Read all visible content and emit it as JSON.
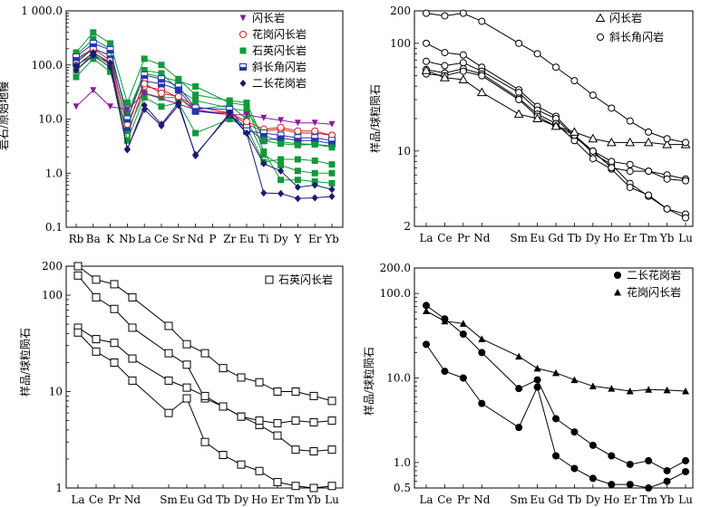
{
  "chart_data": [
    {
      "type": "line",
      "title": "",
      "xlabel": "",
      "ylabel": "岩石/原始地幔",
      "yscale": "log",
      "ylim": [
        0.1,
        1000
      ],
      "ytick_labels": [
        "0.1",
        "1.0",
        "10.0",
        "100.0",
        "1 000.0"
      ],
      "categories": [
        "Rb",
        "Ba",
        "K",
        "Nb",
        "La",
        "Ce",
        "Sr",
        "Nd",
        "P",
        "Zr",
        "Eu",
        "Ti",
        "Dy",
        "Y",
        "Er",
        "Yb"
      ],
      "legend_position": "top-right",
      "series": [
        {
          "name": "闪长岩",
          "color": "#8b1a9c",
          "marker": "triangle-down",
          "values": [
            17,
            34,
            17,
            15,
            30,
            null,
            null,
            15,
            null,
            12,
            12,
            10.5,
            9.5,
            8.5,
            8.5,
            8
          ]
        },
        {
          "name": "花岗闪长岩",
          "color": "#d22020",
          "marker": "circle-open",
          "values": [
            130,
            200,
            120,
            8,
            45,
            30,
            26,
            17,
            null,
            13,
            9,
            6.5,
            7,
            6,
            6,
            5
          ]
        },
        {
          "name": "石英闪长岩",
          "color": "#0e9a3a",
          "marker": "square",
          "values": [
            170,
            400,
            250,
            20,
            130,
            100,
            55,
            28,
            null,
            22,
            20,
            4,
            3.5,
            3.3,
            3.4,
            3
          ]
        },
        {
          "name": "斜长角闪岩",
          "color": "#2238a8",
          "marker": "square-half",
          "values": [
            140,
            250,
            190,
            10,
            65,
            55,
            40,
            16,
            null,
            15,
            6,
            5.5,
            5,
            4.5,
            4.5,
            4
          ]
        },
        {
          "name": "二长花岗岩",
          "color": "#1a1a70",
          "marker": "diamond",
          "values": [
            95,
            170,
            110,
            2.7,
            18,
            8,
            20,
            2.1,
            null,
            13,
            5.5,
            0.43,
            0.42,
            0.34,
            0.35,
            0.37
          ]
        }
      ],
      "extra_lines": [
        {
          "color": "#d22020",
          "marker": "circle-open",
          "values": [
            100,
            150,
            110,
            5,
            40,
            35,
            25,
            14,
            null,
            13,
            8,
            6,
            6.5,
            5.5,
            5.5,
            5
          ]
        },
        {
          "color": "#0e9a3a",
          "marker": "square",
          "values": [
            60,
            130,
            75,
            6,
            30,
            25,
            25,
            15,
            null,
            18,
            10,
            2.2,
            1.4,
            1.1,
            1.0,
            1.0
          ]
        },
        {
          "color": "#0e9a3a",
          "marker": "square",
          "values": [
            80,
            160,
            100,
            4,
            25,
            17,
            20,
            5.5,
            null,
            10,
            7,
            1.6,
            1.8,
            1.8,
            1.7,
            1.45
          ]
        },
        {
          "color": "#0e9a3a",
          "marker": "square",
          "values": [
            120,
            200,
            150,
            13,
            70,
            60,
            50,
            40,
            null,
            20,
            18,
            2.5,
            0.75,
            0.75,
            0.7,
            0.65
          ]
        },
        {
          "color": "#0e9a3a",
          "marker": "square",
          "values": [
            150,
            300,
            200,
            10,
            80,
            70,
            35,
            22,
            null,
            16,
            14,
            5,
            3.8,
            3.5,
            3.4,
            3.2
          ]
        },
        {
          "color": "#2238a8",
          "marker": "square-half",
          "values": [
            110,
            200,
            150,
            7,
            50,
            45,
            35,
            14,
            null,
            12,
            7,
            4,
            4.5,
            4,
            4,
            3.5
          ]
        },
        {
          "color": "#1a1a70",
          "marker": "diamond",
          "values": [
            80,
            150,
            90,
            2.8,
            15,
            7.5,
            18,
            2.2,
            null,
            12,
            5.5,
            1.5,
            1.1,
            0.55,
            0.6,
            0.5
          ]
        }
      ]
    },
    {
      "type": "line",
      "title": "",
      "ylabel": "样品/球粒陨石",
      "yscale": "log",
      "ylim": [
        2,
        200
      ],
      "ytick_labels": [
        "2",
        "10",
        "100",
        "200"
      ],
      "categories": [
        "La",
        "Ce",
        "Pr",
        "Nd",
        "",
        "Sm",
        "Eu",
        "Gd",
        "Tb",
        "Dy",
        "Ho",
        "Er",
        "Tm",
        "Yb",
        "Lu"
      ],
      "legend_position": "top-right",
      "series": [
        {
          "name": "闪长岩",
          "color": "#000",
          "marker": "triangle-open",
          "values": [
            56,
            48,
            46,
            35,
            null,
            22,
            20,
            17,
            15,
            13,
            12,
            12,
            12,
            11.5,
            11.5
          ]
        },
        {
          "name": "斜长角闪岩",
          "color": "#000",
          "marker": "circle-open",
          "values": [
            190,
            180,
            190,
            160,
            null,
            100,
            80,
            60,
            45,
            33,
            25,
            19,
            15,
            13,
            12
          ]
        }
      ],
      "extra_lines": [
        {
          "values": [
            100,
            82,
            78,
            60,
            null,
            37,
            26,
            21,
            14,
            9.5,
            7.5,
            5,
            3.8,
            2.9,
            2.6
          ]
        },
        {
          "values": [
            68,
            62,
            66,
            55,
            null,
            35,
            24,
            20,
            13.5,
            10,
            8,
            7.5,
            6.5,
            6,
            5.5
          ]
        },
        {
          "values": [
            57,
            53,
            58,
            52,
            null,
            31,
            22,
            18,
            12.5,
            8.5,
            6.8,
            4.6,
            3.9,
            2.9,
            2.4
          ]
        },
        {
          "values": [
            52,
            50,
            55,
            50,
            null,
            30,
            21,
            17,
            14,
            10,
            7,
            6.5,
            6.5,
            5.5,
            5.3
          ]
        }
      ]
    },
    {
      "type": "line",
      "title": "",
      "ylabel": "样品/球粒陨石",
      "yscale": "log",
      "ylim": [
        1,
        200
      ],
      "ytick_labels": [
        "1",
        "10",
        "100",
        "200"
      ],
      "categories": [
        "La",
        "Ce",
        "Pr",
        "Nd",
        "",
        "Sm",
        "Eu",
        "Gd",
        "Tb",
        "Dy",
        "Ho",
        "Er",
        "Tm",
        "Yb",
        "Lu"
      ],
      "legend_position": "top-right",
      "series": [
        {
          "name": "石英闪长岩",
          "color": "#000",
          "marker": "square-open",
          "values": [
            200,
            145,
            130,
            95,
            null,
            48,
            31,
            25,
            17.5,
            14,
            12.5,
            10,
            10,
            9,
            8
          ]
        }
      ],
      "extra_lines": [
        {
          "values": [
            160,
            95,
            72,
            46,
            null,
            25,
            19,
            8.5,
            7,
            5.5,
            4.5,
            3.5,
            2.5,
            2.4,
            2.5
          ]
        },
        {
          "values": [
            46,
            35,
            32,
            22,
            null,
            13,
            11,
            9,
            7,
            5.5,
            5,
            4.7,
            5,
            4.8,
            5
          ]
        },
        {
          "values": [
            41,
            26,
            20,
            13,
            null,
            6,
            8.5,
            3,
            2.2,
            1.75,
            1.5,
            1.15,
            1.05,
            1.0,
            1.05
          ]
        }
      ]
    },
    {
      "type": "line",
      "title": "",
      "ylabel": "样品/球粒陨石",
      "yscale": "log",
      "ylim": [
        0.5,
        200
      ],
      "ytick_labels": [
        "0.5",
        "1.0",
        "10.0",
        "100.0",
        "200.0"
      ],
      "categories": [
        "La",
        "Ce",
        "Pr",
        "Nd",
        "",
        "Sm",
        "Eu",
        "Gd",
        "Tb",
        "Dy",
        "Ho",
        "Er",
        "Tm",
        "Yb",
        "Lu"
      ],
      "legend_position": "top-right",
      "series": [
        {
          "name": "二长花岗岩",
          "color": "#000",
          "marker": "circle",
          "values": [
            72,
            50,
            33,
            20,
            null,
            7.5,
            9.5,
            3.3,
            2.3,
            1.6,
            1.2,
            0.95,
            1.05,
            0.8,
            1.05
          ]
        },
        {
          "name": "花岗闪长岩",
          "color": "#000",
          "marker": "triangle",
          "values": [
            62,
            47,
            44,
            29,
            null,
            18,
            13,
            11.5,
            9.5,
            8,
            7.5,
            7,
            7.3,
            7.2,
            7
          ]
        }
      ],
      "extra_lines": [
        {
          "color": "#000",
          "marker": "circle",
          "values": [
            25,
            12,
            10,
            5,
            null,
            2.6,
            7.8,
            1.2,
            0.85,
            0.65,
            0.55,
            0.55,
            0.5,
            0.6,
            0.78
          ]
        }
      ]
    }
  ]
}
